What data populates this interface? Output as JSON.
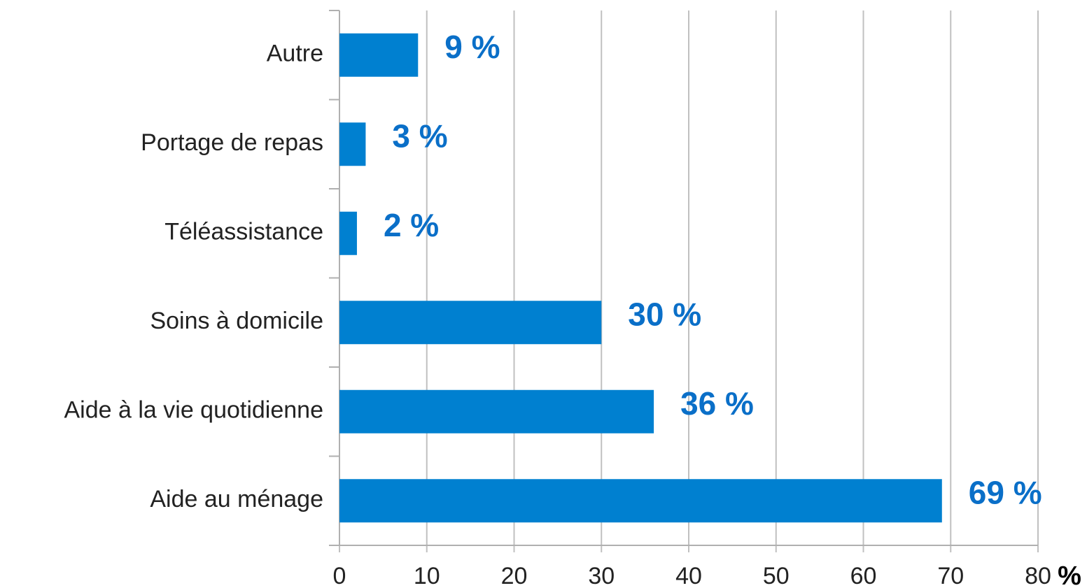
{
  "chart_data": {
    "type": "barh",
    "categories": [
      "Autre",
      "Portage de repas",
      "Téléassistance",
      "Soins à domicile",
      "Aide à la vie quotidienne",
      "Aide au ménage"
    ],
    "values": [
      9,
      3,
      2,
      30,
      36,
      69
    ],
    "value_labels": [
      "9 %",
      "3 %",
      "2 %",
      "30 %",
      "36 %",
      "69 %"
    ],
    "color": "#0080d0",
    "label_color": "#0a6fc8",
    "xlim": [
      0,
      80
    ],
    "xticks": [
      0,
      10,
      20,
      30,
      40,
      50,
      60,
      70,
      80
    ],
    "x_label": "%",
    "grid": true
  }
}
